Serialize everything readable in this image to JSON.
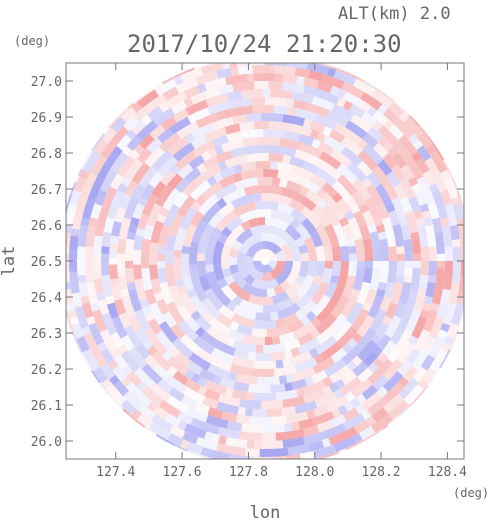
{
  "chart_data": {
    "type": "heatmap",
    "title": "2017/10/24 21:20:30",
    "altitude_label": "ALT(km) 2.0",
    "xlabel": "lon",
    "ylabel": "lat",
    "x_unit": "(deg)",
    "y_unit": "(deg)",
    "xlim": [
      127.25,
      128.45
    ],
    "ylim": [
      25.95,
      27.05
    ],
    "x_ticks": [
      "127.4",
      "127.6",
      "127.8",
      "128.0",
      "128.2",
      "128.4"
    ],
    "y_ticks": [
      "26.0",
      "26.1",
      "26.2",
      "26.3",
      "26.4",
      "26.5",
      "26.6",
      "26.7",
      "26.8",
      "26.9",
      "27.0"
    ],
    "radar_center": [
      127.85,
      26.5
    ],
    "colors": {
      "positive": "#f5a5a5",
      "negative": "#a8a8f2",
      "axis": "#666666"
    }
  }
}
